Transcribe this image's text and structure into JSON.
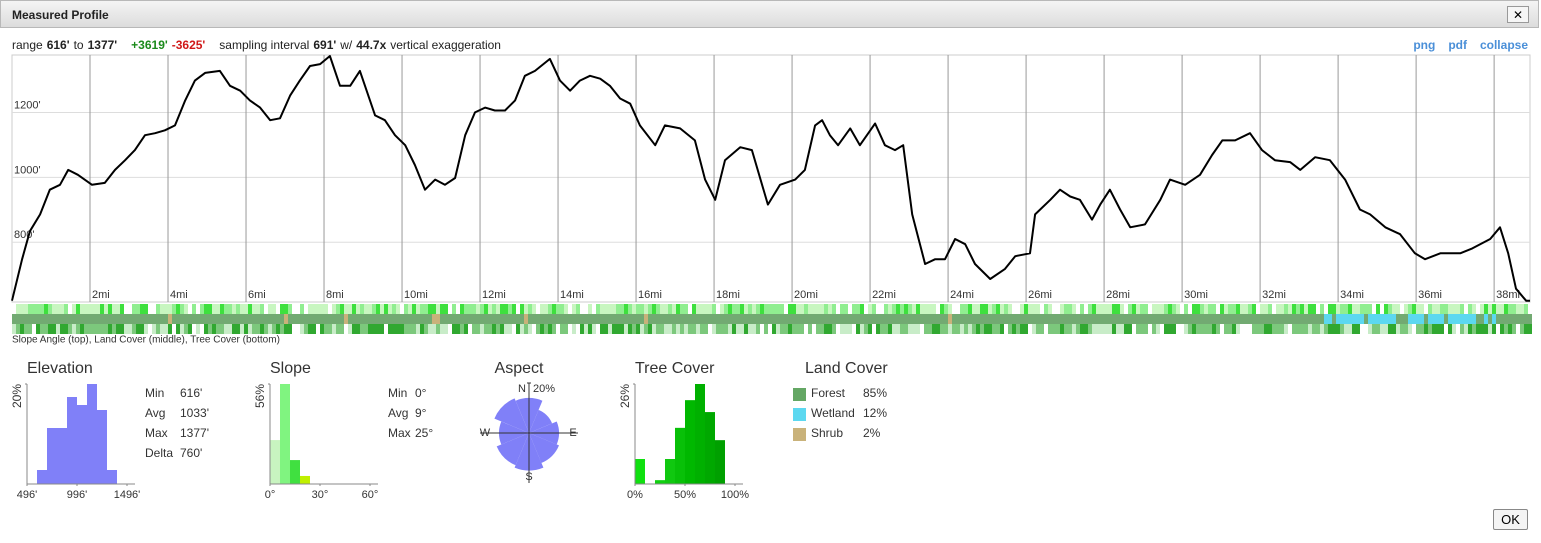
{
  "dialog": {
    "title": "Measured Profile",
    "close": "✕",
    "ok": "OK"
  },
  "header": {
    "parts": [
      "range",
      "616'",
      "to",
      "1377'",
      "+3619'",
      "-3625'",
      "sampling interval",
      "691'",
      "w/",
      "44.7x",
      "vertical exaggeration"
    ],
    "links": [
      "png",
      "pdf",
      "collapse"
    ]
  },
  "strip_caption": "Slope Angle (top), Land Cover (middle), Tree Cover (bottom)",
  "land_cover": {
    "title": "Land Cover",
    "items": [
      {
        "name": "Forest",
        "color": "#64a764",
        "share": "85%"
      },
      {
        "name": "Wetland",
        "color": "#5cd8f0",
        "share": "12%"
      },
      {
        "name": "Shrub",
        "color": "#c9b27a",
        "share": "2%"
      }
    ]
  },
  "chart_data": [
    {
      "type": "line",
      "color": "#000000",
      "grid": true,
      "x": [
        0,
        0.26,
        0.46,
        0.72,
        0.97,
        1.23,
        1.44,
        1.69,
        2.05,
        2.38,
        2.64,
        2.9,
        3.15,
        3.41,
        3.67,
        3.92,
        4.18,
        4.44,
        4.69,
        4.95,
        5.33,
        5.59,
        5.85,
        6.1,
        6.36,
        6.62,
        6.87,
        7.13,
        7.38,
        7.64,
        7.9,
        8.15,
        8.41,
        8.67,
        8.92,
        9.31,
        9.56,
        9.82,
        10.08,
        10.33,
        10.59,
        10.85,
        11.1,
        11.36,
        11.62,
        11.87,
        12.13,
        12.38,
        12.64,
        12.9,
        13.15,
        13.41,
        13.79,
        14.05,
        14.31,
        14.56,
        14.82,
        15.08,
        15.33,
        15.59,
        15.85,
        16.1,
        16.49,
        16.74,
        17.13,
        17.51,
        17.77,
        18.03,
        18.28,
        18.67,
        18.97,
        19.38,
        19.69,
        20.08,
        20.33,
        20.59,
        20.77,
        20.97,
        21.18,
        21.49,
        21.74,
        22.13,
        22.38,
        22.64,
        22.85,
        23.08,
        23.41,
        23.67,
        23.92,
        24.18,
        24.44,
        24.69,
        25.08,
        25.46,
        25.72,
        26.1,
        26.23,
        26.62,
        26.87,
        27.13,
        27.38,
        27.69,
        27.9,
        28.15,
        28.41,
        28.67,
        29.05,
        29.44,
        29.69,
        30.08,
        30.46,
        30.77,
        31.03,
        31.36,
        31.74,
        32.05,
        32.38,
        32.77,
        33.03,
        33.41,
        33.79,
        34.18,
        34.56,
        34.82,
        35.21,
        35.59,
        35.97,
        36.23,
        36.62,
        37.13,
        37.44,
        37.9,
        38.15,
        38.36,
        38.56,
        38.82,
        38.92
      ],
      "values": [
        620,
        748,
        834,
        886,
        962,
        977,
        1023,
        1008,
        977,
        983,
        1023,
        1053,
        1084,
        1130,
        1136,
        1145,
        1160,
        1237,
        1298,
        1322,
        1328,
        1282,
        1267,
        1237,
        1215,
        1176,
        1182,
        1252,
        1298,
        1343,
        1349,
        1374,
        1282,
        1282,
        1328,
        1191,
        1176,
        1130,
        1099,
        1038,
        962,
        993,
        977,
        998,
        1130,
        1200,
        1215,
        1206,
        1206,
        1237,
        1313,
        1328,
        1365,
        1298,
        1267,
        1298,
        1313,
        1304,
        1282,
        1243,
        1227,
        1160,
        1099,
        1160,
        1151,
        1114,
        993,
        931,
        1053,
        1093,
        1084,
        916,
        977,
        993,
        1023,
        1160,
        1176,
        1130,
        1099,
        1151,
        1099,
        1166,
        1099,
        1084,
        1099,
        886,
        733,
        748,
        748,
        810,
        794,
        733,
        687,
        718,
        757,
        766,
        886,
        931,
        962,
        941,
        931,
        870,
        916,
        962,
        901,
        846,
        855,
        931,
        993,
        977,
        1008,
        1069,
        1114,
        1114,
        1136,
        1084,
        1053,
        1047,
        1023,
        1062,
        1053,
        993,
        901,
        886,
        846,
        825,
        766,
        748,
        766,
        766,
        781,
        810,
        846,
        766,
        657,
        620,
        620
      ],
      "xlim": [
        0,
        38.92
      ],
      "ylim": [
        616,
        1377
      ],
      "xticks": [
        {
          "value": 2,
          "label": "2mi"
        },
        {
          "value": 4,
          "label": "4mi"
        },
        {
          "value": 6,
          "label": "6mi"
        },
        {
          "value": 8,
          "label": "8mi"
        },
        {
          "value": 10,
          "label": "10mi"
        },
        {
          "value": 12,
          "label": "12mi"
        },
        {
          "value": 14,
          "label": "14mi"
        },
        {
          "value": 16,
          "label": "16mi"
        },
        {
          "value": 18,
          "label": "18mi"
        },
        {
          "value": 20,
          "label": "20mi"
        },
        {
          "value": 22,
          "label": "22mi"
        },
        {
          "value": 24,
          "label": "24mi"
        },
        {
          "value": 26,
          "label": "26mi"
        },
        {
          "value": 28,
          "label": "28mi"
        },
        {
          "value": 30,
          "label": "30mi"
        },
        {
          "value": 32,
          "label": "32mi"
        },
        {
          "value": 34,
          "label": "34mi"
        },
        {
          "value": 36,
          "label": "36mi"
        },
        {
          "value": 38,
          "label": "38mi"
        }
      ],
      "yticks": [
        {
          "value": 800,
          "label": "800'"
        },
        {
          "value": 1000,
          "label": "1000'"
        },
        {
          "value": 1200,
          "label": "1200'"
        }
      ]
    },
    {
      "type": "histogram",
      "title": "Elevation",
      "color": "#8080f8",
      "bins": [
        596,
        696,
        796,
        896,
        996,
        1096,
        1196,
        1296,
        1396
      ],
      "values": [
        2.8,
        11.2,
        11.2,
        17.4,
        15.8,
        20,
        14.8,
        2.8
      ],
      "xlim": [
        496,
        1496
      ],
      "ylim": [
        0,
        20
      ],
      "xticks": [
        {
          "value": 496,
          "label": "496'"
        },
        {
          "value": 996,
          "label": "996'"
        },
        {
          "value": 1496,
          "label": "1496'"
        }
      ],
      "yticks": [
        {
          "value": 20,
          "label": "20%"
        }
      ],
      "stats": [
        [
          "Min",
          "616'"
        ],
        [
          "Avg",
          "1033'"
        ],
        [
          "Max",
          "1377'"
        ],
        [
          "Delta",
          "760'"
        ]
      ]
    },
    {
      "type": "histogram",
      "title": "Slope",
      "colors": [
        "#c8f4c0",
        "#80f480",
        "#40e040",
        "#c0f000"
      ],
      "bins": [
        0,
        6,
        12,
        18,
        24
      ],
      "values": [
        24.6,
        56,
        13.4,
        4.5
      ],
      "xlim": [
        0,
        60
      ],
      "ylim": [
        0,
        56
      ],
      "xticks": [
        {
          "value": 0,
          "label": "0°"
        },
        {
          "value": 30,
          "label": "30°"
        },
        {
          "value": 60,
          "label": "60°"
        }
      ],
      "yticks": [
        {
          "value": 56,
          "label": "56%"
        }
      ],
      "stats": [
        [
          "Min",
          "0°"
        ],
        [
          "Avg",
          "9°"
        ],
        [
          "Max",
          "25°"
        ]
      ]
    },
    {
      "type": "rose",
      "title": "Aspect",
      "color": "#8080f8",
      "categories": [
        "N",
        null,
        "E",
        null,
        "S",
        null,
        "W",
        null
      ],
      "values": [
        14,
        10,
        12,
        13,
        15,
        14,
        12,
        15
      ],
      "rlim": [
        0,
        20
      ],
      "rticks": [
        {
          "value": 20,
          "label": "20%"
        }
      ]
    },
    {
      "type": "histogram",
      "title": "Tree Cover",
      "colors": [
        "#10e010",
        "#10e010",
        "#10d010",
        "#10c810",
        "#08c008",
        "#00b800",
        "#00b000",
        "#00a800",
        "#00a000"
      ],
      "bins": [
        0,
        10,
        20,
        30,
        40,
        50,
        60,
        70,
        80,
        90
      ],
      "values": [
        6.5,
        0,
        1,
        6.5,
        14.6,
        21.8,
        26,
        18.7,
        11.4
      ],
      "xlim": [
        0,
        100
      ],
      "ylim": [
        0,
        26
      ],
      "xticks": [
        {
          "value": 0,
          "label": "0%"
        },
        {
          "value": 50,
          "label": "50%"
        },
        {
          "value": 100,
          "label": "100%"
        }
      ],
      "yticks": [
        {
          "value": 26,
          "label": "26%"
        }
      ]
    }
  ]
}
